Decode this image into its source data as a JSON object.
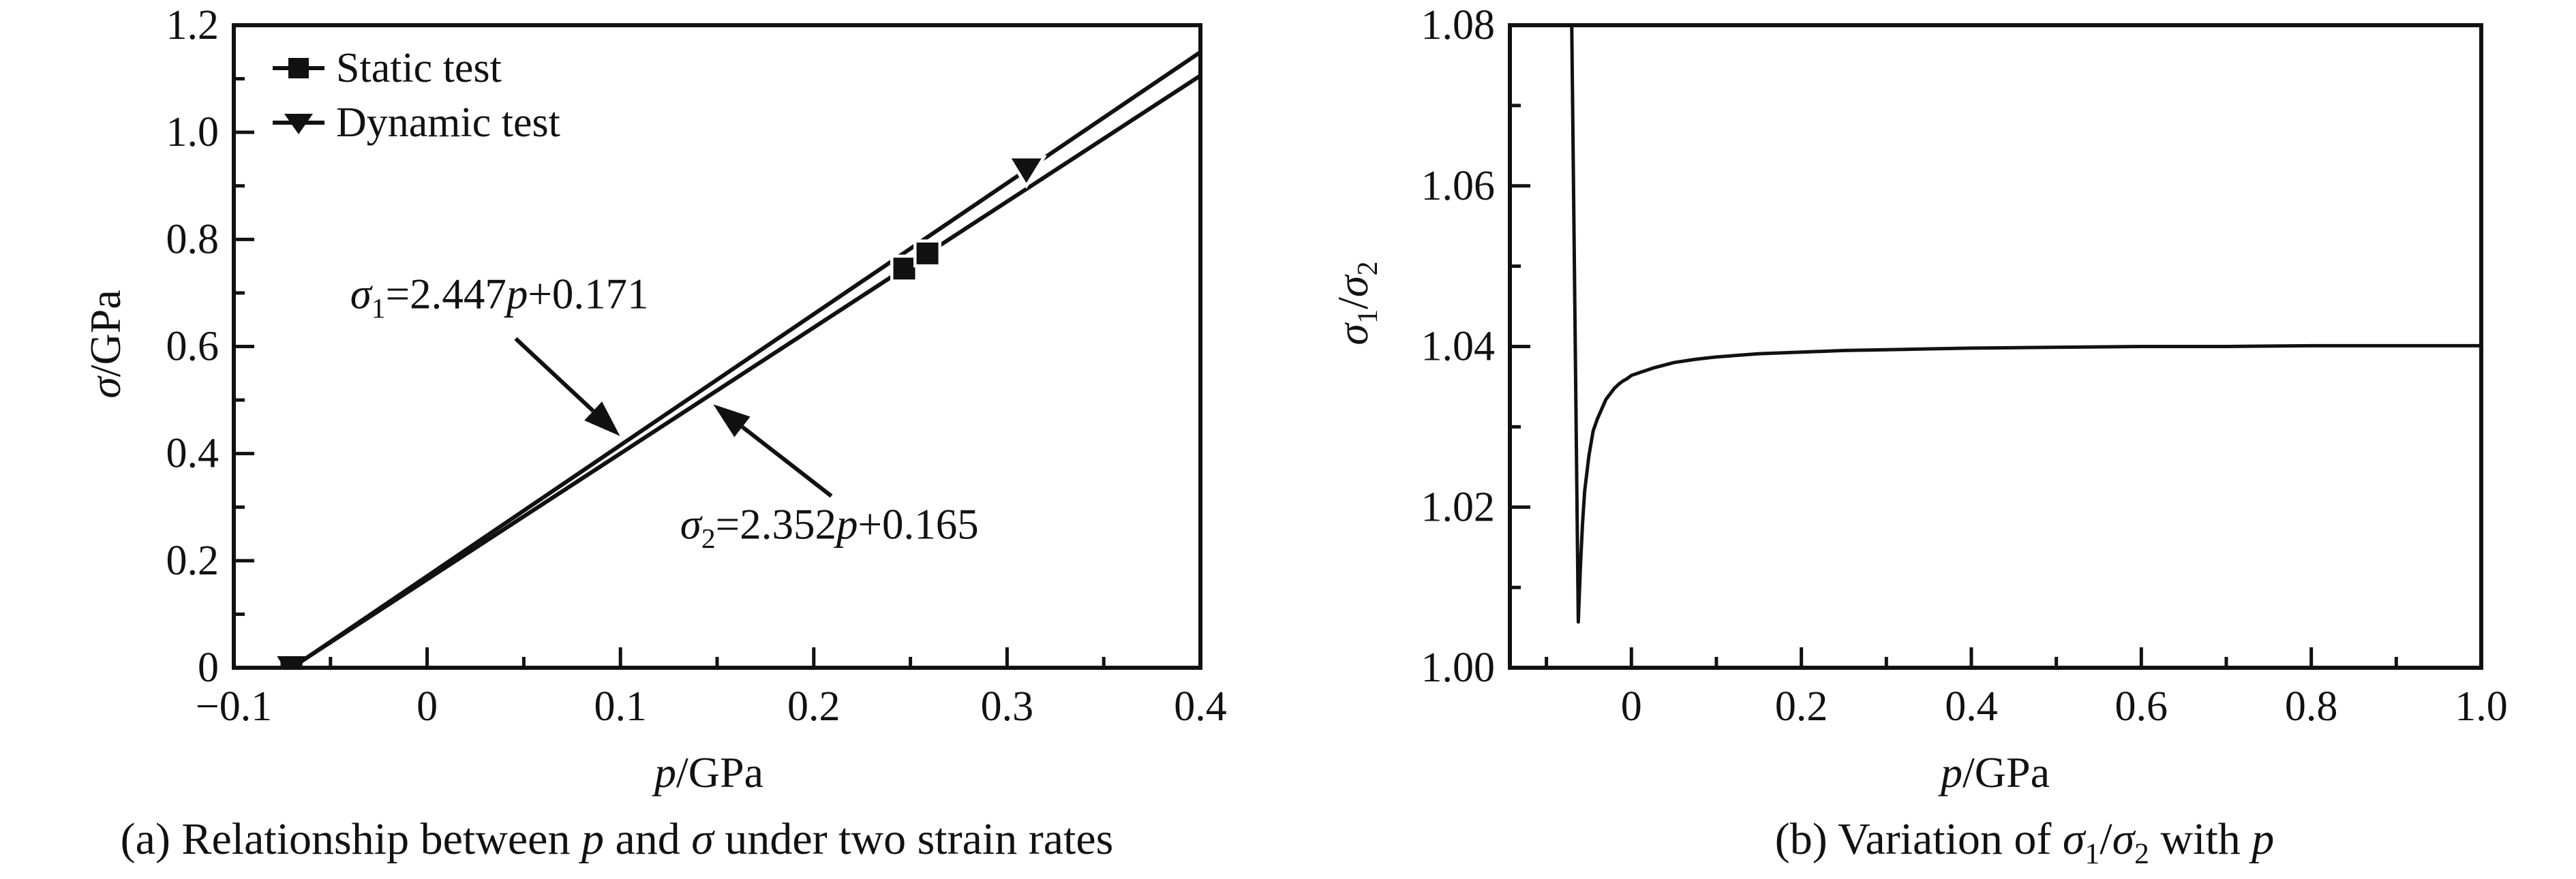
{
  "figure": {
    "background_color": "#ffffff",
    "ink_color": "#111111"
  },
  "chart_data": [
    {
      "id": "a",
      "type": "line",
      "caption_segments": [
        {
          "t": "(a) Relationship between "
        },
        {
          "t": "p",
          "i": 1
        },
        {
          "t": " and "
        },
        {
          "t": "σ",
          "i": 1
        },
        {
          "t": " under two strain rates"
        }
      ],
      "xlabel_segments": [
        {
          "t": "p",
          "i": 1
        },
        {
          "t": "/GPa"
        }
      ],
      "ylabel_segments": [
        {
          "t": "σ",
          "i": 1
        },
        {
          "t": "/GPa"
        }
      ],
      "xlim": [
        -0.1,
        0.4
      ],
      "ylim": [
        0,
        1.2
      ],
      "x_axis": {
        "major_values": [
          -0.1,
          0,
          0.1,
          0.2,
          0.3,
          0.4
        ],
        "major_labels": [
          "−0.1",
          "0",
          "0.1",
          "0.2",
          "0.3",
          "0.4"
        ],
        "minor_values": [
          -0.05,
          0.05,
          0.15,
          0.25,
          0.35
        ]
      },
      "y_axis": {
        "major_values": [
          0,
          0.2,
          0.4,
          0.6,
          0.8,
          1.0,
          1.2
        ],
        "major_labels": [
          "0",
          "0.2",
          "0.4",
          "0.6",
          "0.8",
          "1.0",
          "1.2"
        ],
        "minor_values": [
          0.1,
          0.3,
          0.5,
          0.7,
          0.9,
          1.1
        ]
      },
      "grid": false,
      "legend_position": "upper-left-inside",
      "legend": [
        {
          "label": "Static test",
          "marker": "square"
        },
        {
          "label": "Dynamic test",
          "marker": "triangle-down"
        }
      ],
      "series": [
        {
          "name": "Dynamic test",
          "marker": "triangle-down",
          "equation": "σ1=2.447p+0.171",
          "slope": 2.447,
          "intercept": 0.171,
          "line_points": [
            [
              -0.0699,
              0
            ],
            [
              0.4,
              1.1498
            ]
          ],
          "data_points": [
            [
              -0.0699,
              0
            ],
            [
              0.31,
              0.9296
            ]
          ]
        },
        {
          "name": "Static test",
          "marker": "square",
          "equation": "σ2=2.352p+0.165",
          "slope": 2.352,
          "intercept": 0.165,
          "line_points": [
            [
              -0.0702,
              0
            ],
            [
              0.4,
              1.1058
            ]
          ],
          "data_points": [
            [
              -0.0702,
              0
            ],
            [
              0.2468,
              0.7455
            ],
            [
              0.2588,
              0.7738
            ]
          ]
        }
      ],
      "annotations": [
        {
          "text_segments": [
            {
              "t": "σ",
              "i": 1
            },
            {
              "t": "1",
              "sub": 1
            },
            {
              "t": "=2.447"
            },
            {
              "t": "p",
              "i": 1
            },
            {
              "t": "+0.171"
            }
          ],
          "at": [
            0.0374,
            0.6974
          ],
          "arrow": {
            "from": [
              0.0458,
              0.6147
            ],
            "to": [
              0.0998,
              0.4327
            ]
          }
        },
        {
          "text_segments": [
            {
              "t": "σ",
              "i": 1
            },
            {
              "t": "2",
              "sub": 1
            },
            {
              "t": "=2.352"
            },
            {
              "t": "p",
              "i": 1
            },
            {
              "t": "+0.165"
            }
          ],
          "at": [
            0.2081,
            0.2672
          ],
          "arrow": {
            "from": [
              0.2091,
              0.3207
            ],
            "to": [
              0.148,
              0.492
            ]
          }
        }
      ]
    },
    {
      "id": "b",
      "type": "line",
      "caption_segments": [
        {
          "t": "(b) Variation of "
        },
        {
          "t": "σ",
          "i": 1
        },
        {
          "t": "1",
          "sub": 1
        },
        {
          "t": "/"
        },
        {
          "t": "σ",
          "i": 1
        },
        {
          "t": "2",
          "sub": 1
        },
        {
          "t": " with "
        },
        {
          "t": "p",
          "i": 1
        }
      ],
      "xlabel_segments": [
        {
          "t": "p",
          "i": 1
        },
        {
          "t": "/GPa"
        }
      ],
      "ylabel_segments": [
        {
          "t": "σ",
          "i": 1
        },
        {
          "t": "1",
          "sub": 1
        },
        {
          "t": "/"
        },
        {
          "t": "σ",
          "i": 1
        },
        {
          "t": "2",
          "sub": 1
        }
      ],
      "xlim": [
        -0.143,
        1.0
      ],
      "ylim": [
        1.0,
        1.08
      ],
      "x_axis": {
        "major_values": [
          0,
          0.2,
          0.4,
          0.6,
          0.8,
          1.0
        ],
        "major_labels": [
          "0",
          "0.2",
          "0.4",
          "0.6",
          "0.8",
          "1.0"
        ],
        "minor_values": [
          -0.1,
          0.1,
          0.3,
          0.5,
          0.7,
          0.9
        ]
      },
      "y_axis": {
        "major_values": [
          1.0,
          1.02,
          1.04,
          1.06,
          1.08
        ],
        "major_labels": [
          "1.00",
          "1.02",
          "1.04",
          "1.06",
          "1.08"
        ],
        "minor_values": [
          1.01,
          1.03,
          1.05,
          1.07
        ]
      },
      "grid": false,
      "legend": [],
      "series": [],
      "curve": {
        "name": "sigma1/sigma2 ratio",
        "points": [
          [
            -0.0702,
            1.08
          ],
          [
            -0.0625,
            1.0057
          ],
          [
            -0.06,
            1.0126
          ],
          [
            -0.0575,
            1.018
          ],
          [
            -0.055,
            1.022
          ],
          [
            -0.05,
            1.0264
          ],
          [
            -0.045,
            1.0295
          ],
          [
            -0.04,
            1.031
          ],
          [
            -0.035,
            1.0322
          ],
          [
            -0.03,
            1.0334
          ],
          [
            -0.025,
            1.0341
          ],
          [
            -0.02,
            1.0348
          ],
          [
            -0.015,
            1.0353
          ],
          [
            -0.01,
            1.0357
          ],
          [
            -0.005,
            1.036
          ],
          [
            0,
            1.0364
          ],
          [
            0.025,
            1.0373
          ],
          [
            0.05,
            1.038
          ],
          [
            0.075,
            1.0384
          ],
          [
            0.1,
            1.0387
          ],
          [
            0.15,
            1.0391
          ],
          [
            0.2,
            1.0393
          ],
          [
            0.25,
            1.0395
          ],
          [
            0.3,
            1.0396
          ],
          [
            0.35,
            1.0397
          ],
          [
            0.4,
            1.0398
          ],
          [
            0.5,
            1.0399
          ],
          [
            0.6,
            1.04
          ],
          [
            0.7,
            1.04
          ],
          [
            0.8,
            1.0401
          ],
          [
            0.9,
            1.0401
          ],
          [
            1.0,
            1.0401
          ]
        ]
      },
      "annotations": []
    }
  ]
}
